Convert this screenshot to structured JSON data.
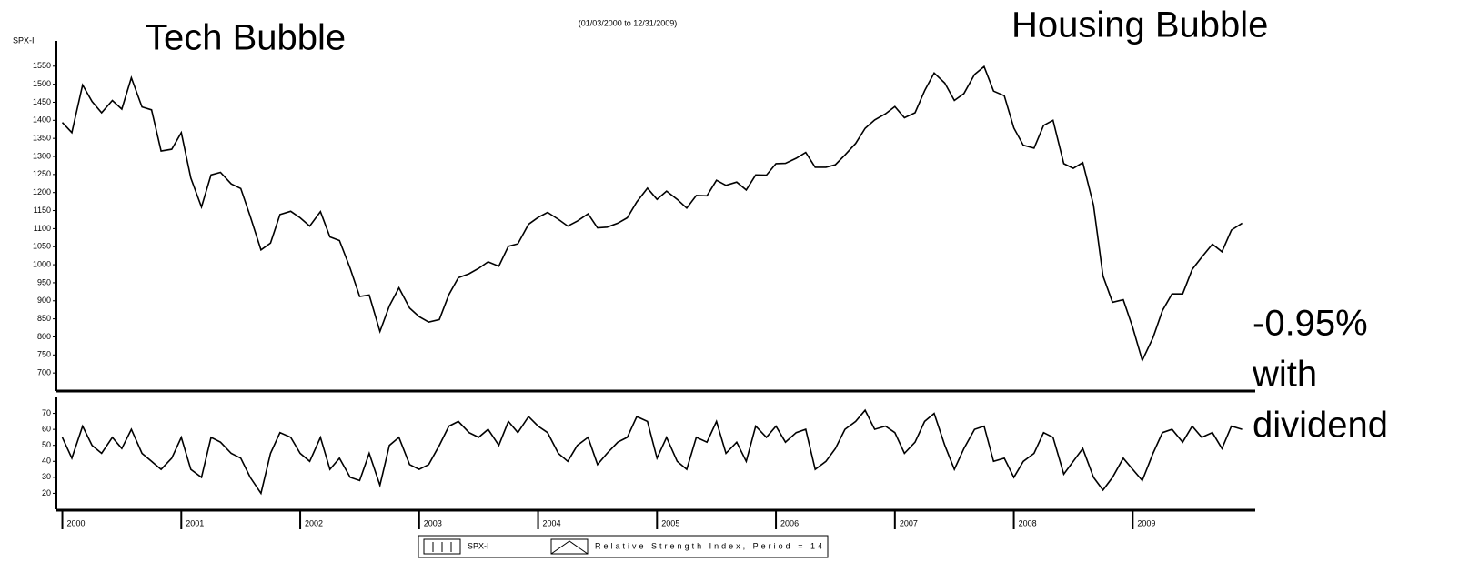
{
  "chart_data": [
    {
      "type": "line",
      "subtitle": "(01/03/2000 to 12/31/2009)",
      "ylabel": "SPX-I",
      "annotations": [
        "Tech Bubble",
        "Housing Bubble",
        "-0.95%",
        "with",
        "dividend"
      ],
      "x": [
        2000,
        2000.08,
        2000.17,
        2000.25,
        2000.33,
        2000.42,
        2000.5,
        2000.58,
        2000.67,
        2000.75,
        2000.83,
        2000.92,
        2001,
        2001.08,
        2001.17,
        2001.25,
        2001.33,
        2001.42,
        2001.5,
        2001.58,
        2001.67,
        2001.75,
        2001.83,
        2001.92,
        2002,
        2002.08,
        2002.17,
        2002.25,
        2002.33,
        2002.42,
        2002.5,
        2002.58,
        2002.67,
        2002.75,
        2002.83,
        2002.92,
        2003,
        2003.08,
        2003.17,
        2003.25,
        2003.33,
        2003.42,
        2003.5,
        2003.58,
        2003.67,
        2003.75,
        2003.83,
        2003.92,
        2004,
        2004.08,
        2004.17,
        2004.25,
        2004.33,
        2004.42,
        2004.5,
        2004.58,
        2004.67,
        2004.75,
        2004.83,
        2004.92,
        2005,
        2005.08,
        2005.17,
        2005.25,
        2005.33,
        2005.42,
        2005.5,
        2005.58,
        2005.67,
        2005.75,
        2005.83,
        2005.92,
        2006,
        2006.08,
        2006.17,
        2006.25,
        2006.33,
        2006.42,
        2006.5,
        2006.58,
        2006.67,
        2006.75,
        2006.83,
        2006.92,
        2007,
        2007.08,
        2007.17,
        2007.25,
        2007.33,
        2007.42,
        2007.5,
        2007.58,
        2007.67,
        2007.75,
        2007.83,
        2007.92,
        2008,
        2008.08,
        2008.17,
        2008.25,
        2008.33,
        2008.42,
        2008.5,
        2008.58,
        2008.67,
        2008.75,
        2008.83,
        2008.92,
        2009,
        2009.08,
        2009.17,
        2009.25,
        2009.33,
        2009.42,
        2009.5,
        2009.58,
        2009.67,
        2009.75,
        2009.83,
        2009.92
      ],
      "series": [
        {
          "name": "SPX-I",
          "color": "#000000",
          "values": [
            1394,
            1366,
            1498,
            1452,
            1421,
            1455,
            1431,
            1518,
            1437,
            1429,
            1315,
            1320,
            1366,
            1240,
            1160,
            1249,
            1256,
            1224,
            1211,
            1134,
            1041,
            1060,
            1139,
            1148,
            1130,
            1107,
            1147,
            1077,
            1067,
            990,
            912,
            916,
            815,
            886,
            936,
            880,
            856,
            841,
            848,
            917,
            964,
            975,
            990,
            1008,
            996,
            1051,
            1058,
            1112,
            1131,
            1145,
            1126,
            1107,
            1121,
            1141,
            1102,
            1104,
            1115,
            1130,
            1174,
            1212,
            1181,
            1204,
            1181,
            1157,
            1192,
            1191,
            1234,
            1220,
            1229,
            1207,
            1249,
            1248,
            1280,
            1281,
            1295,
            1311,
            1270,
            1270,
            1277,
            1304,
            1336,
            1378,
            1401,
            1418,
            1438,
            1407,
            1421,
            1482,
            1531,
            1503,
            1455,
            1474,
            1527,
            1549,
            1481,
            1468,
            1379,
            1331,
            1323,
            1386,
            1400,
            1280,
            1267,
            1283,
            1165,
            969,
            896,
            903,
            826,
            735,
            798,
            873,
            919,
            919,
            987,
            1021,
            1057,
            1036,
            1096,
            1115
          ]
        }
      ],
      "xlim": [
        1999.95,
        2010.03
      ],
      "ylim": [
        650,
        1620
      ],
      "yticks": [
        700,
        750,
        800,
        850,
        900,
        950,
        1000,
        1050,
        1100,
        1150,
        1200,
        1250,
        1300,
        1350,
        1400,
        1450,
        1500,
        1550
      ]
    },
    {
      "type": "line",
      "x": [
        2000,
        2000.08,
        2000.17,
        2000.25,
        2000.33,
        2000.42,
        2000.5,
        2000.58,
        2000.67,
        2000.75,
        2000.83,
        2000.92,
        2001,
        2001.08,
        2001.17,
        2001.25,
        2001.33,
        2001.42,
        2001.5,
        2001.58,
        2001.67,
        2001.75,
        2001.83,
        2001.92,
        2002,
        2002.08,
        2002.17,
        2002.25,
        2002.33,
        2002.42,
        2002.5,
        2002.58,
        2002.67,
        2002.75,
        2002.83,
        2002.92,
        2003,
        2003.08,
        2003.17,
        2003.25,
        2003.33,
        2003.42,
        2003.5,
        2003.58,
        2003.67,
        2003.75,
        2003.83,
        2003.92,
        2004,
        2004.08,
        2004.17,
        2004.25,
        2004.33,
        2004.42,
        2004.5,
        2004.58,
        2004.67,
        2004.75,
        2004.83,
        2004.92,
        2005,
        2005.08,
        2005.17,
        2005.25,
        2005.33,
        2005.42,
        2005.5,
        2005.58,
        2005.67,
        2005.75,
        2005.83,
        2005.92,
        2006,
        2006.08,
        2006.17,
        2006.25,
        2006.33,
        2006.42,
        2006.5,
        2006.58,
        2006.67,
        2006.75,
        2006.83,
        2006.92,
        2007,
        2007.08,
        2007.17,
        2007.25,
        2007.33,
        2007.42,
        2007.5,
        2007.58,
        2007.67,
        2007.75,
        2007.83,
        2007.92,
        2008,
        2008.08,
        2008.17,
        2008.25,
        2008.33,
        2008.42,
        2008.5,
        2008.58,
        2008.67,
        2008.75,
        2008.83,
        2008.92,
        2009,
        2009.08,
        2009.17,
        2009.25,
        2009.33,
        2009.42,
        2009.5,
        2009.58,
        2009.67,
        2009.75,
        2009.83,
        2009.92
      ],
      "series": [
        {
          "name": "Relative Strength Index, Period = 14",
          "color": "#000000",
          "values": [
            55,
            42,
            62,
            50,
            45,
            55,
            48,
            60,
            45,
            40,
            35,
            42,
            55,
            35,
            30,
            55,
            52,
            45,
            42,
            30,
            20,
            45,
            58,
            55,
            45,
            40,
            55,
            35,
            42,
            30,
            28,
            45,
            25,
            50,
            55,
            38,
            35,
            38,
            50,
            62,
            65,
            58,
            55,
            60,
            50,
            65,
            58,
            68,
            62,
            58,
            45,
            40,
            50,
            55,
            38,
            45,
            52,
            55,
            68,
            65,
            42,
            55,
            40,
            35,
            55,
            52,
            65,
            45,
            52,
            40,
            62,
            55,
            62,
            52,
            58,
            60,
            35,
            40,
            48,
            60,
            65,
            72,
            60,
            62,
            58,
            45,
            52,
            65,
            70,
            50,
            35,
            48,
            60,
            62,
            40,
            42,
            30,
            40,
            45,
            58,
            55,
            32,
            40,
            48,
            30,
            22,
            30,
            42,
            35,
            28,
            45,
            58,
            60,
            52,
            62,
            55,
            58,
            48,
            62,
            60
          ]
        }
      ],
      "xlim": [
        1999.95,
        2010.03
      ],
      "ylim": [
        10,
        80
      ],
      "yticks": [
        20,
        30,
        40,
        50,
        60,
        70
      ],
      "xticks": [
        2000,
        2001,
        2002,
        2003,
        2004,
        2005,
        2006,
        2007,
        2008,
        2009
      ]
    }
  ]
}
